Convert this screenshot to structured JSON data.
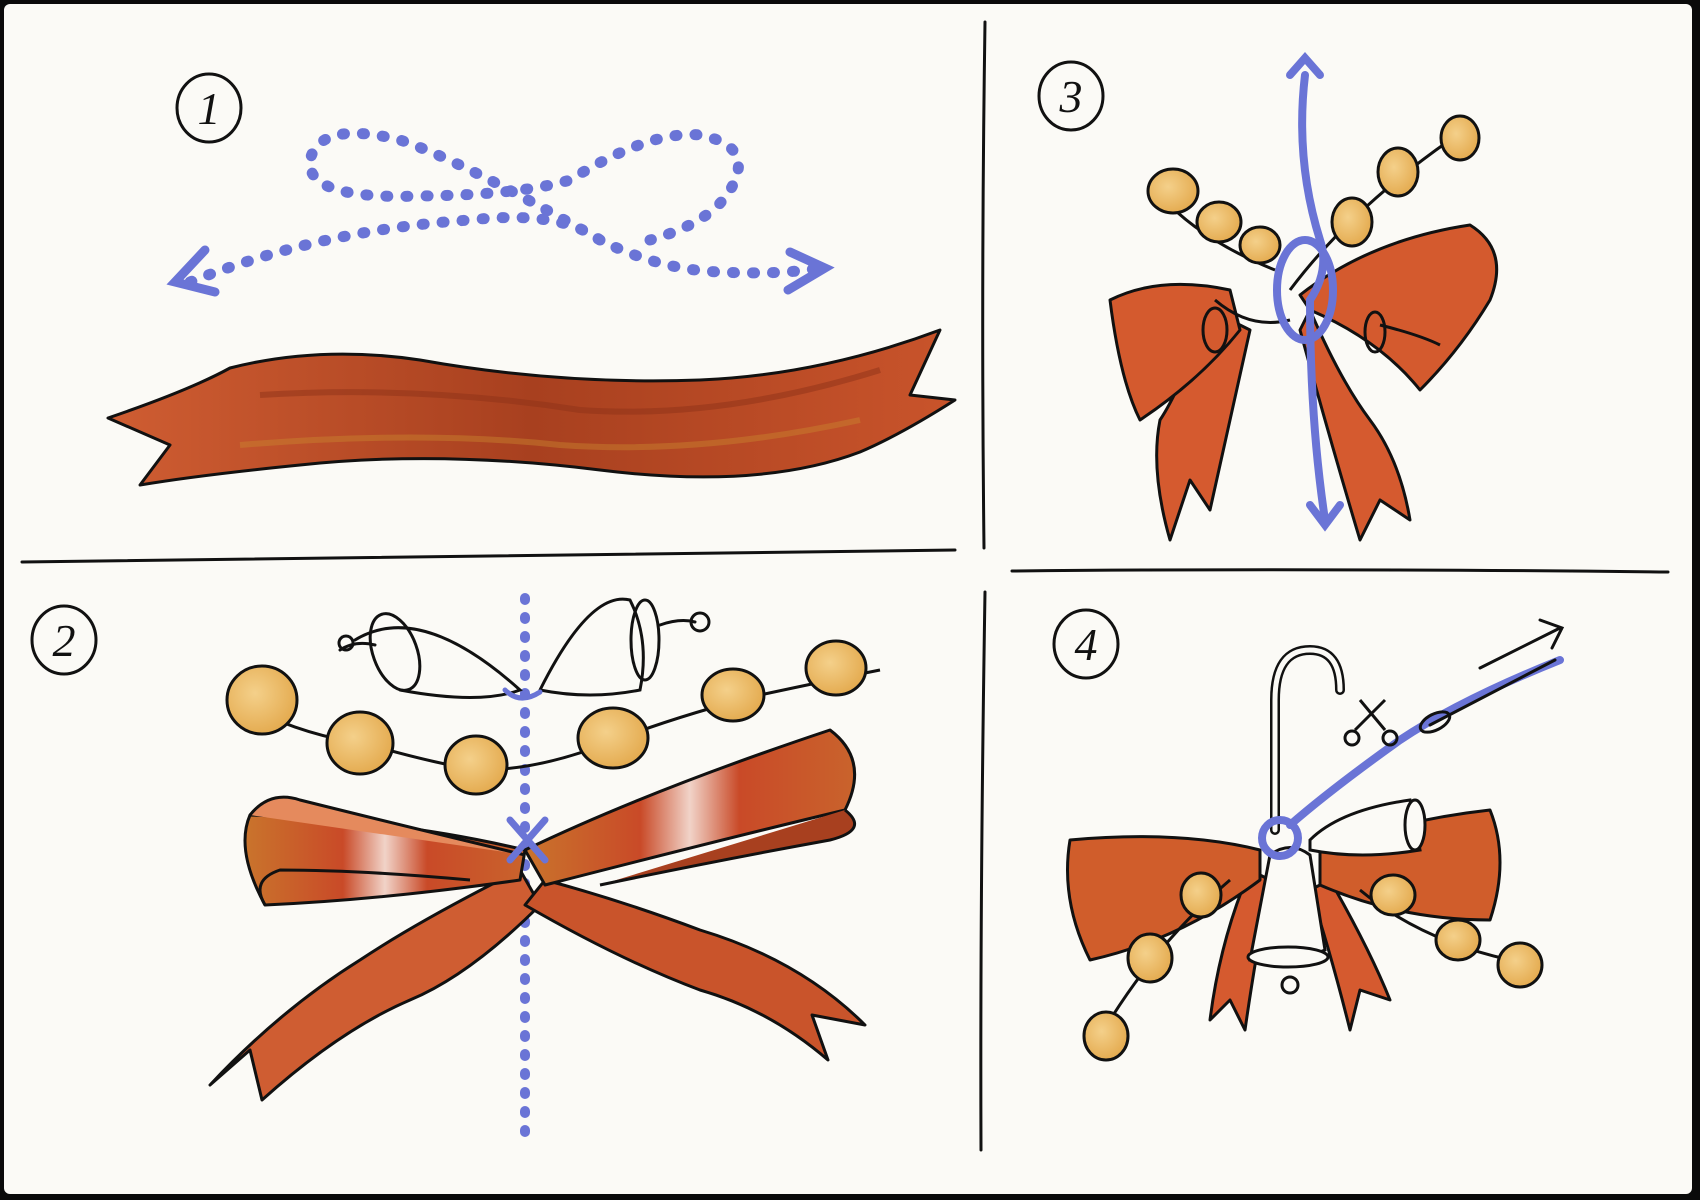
{
  "steps": [
    {
      "number": "1"
    },
    {
      "number": "2"
    },
    {
      "number": "3"
    },
    {
      "number": "4"
    }
  ],
  "colors": {
    "paper": "#fbfaf6",
    "ink": "#111111",
    "ribbon_dark": "#a8401f",
    "ribbon": "#cf5d32",
    "ribbon_light": "#e58a5d",
    "bead": "#e9b25a",
    "bead_light": "#f1c77a",
    "guide_blue": "#6a74d6"
  },
  "icons": [
    "ribbon",
    "bow",
    "bead-garland",
    "bell",
    "candy-cane-hook",
    "scissors",
    "needle",
    "arrow"
  ]
}
